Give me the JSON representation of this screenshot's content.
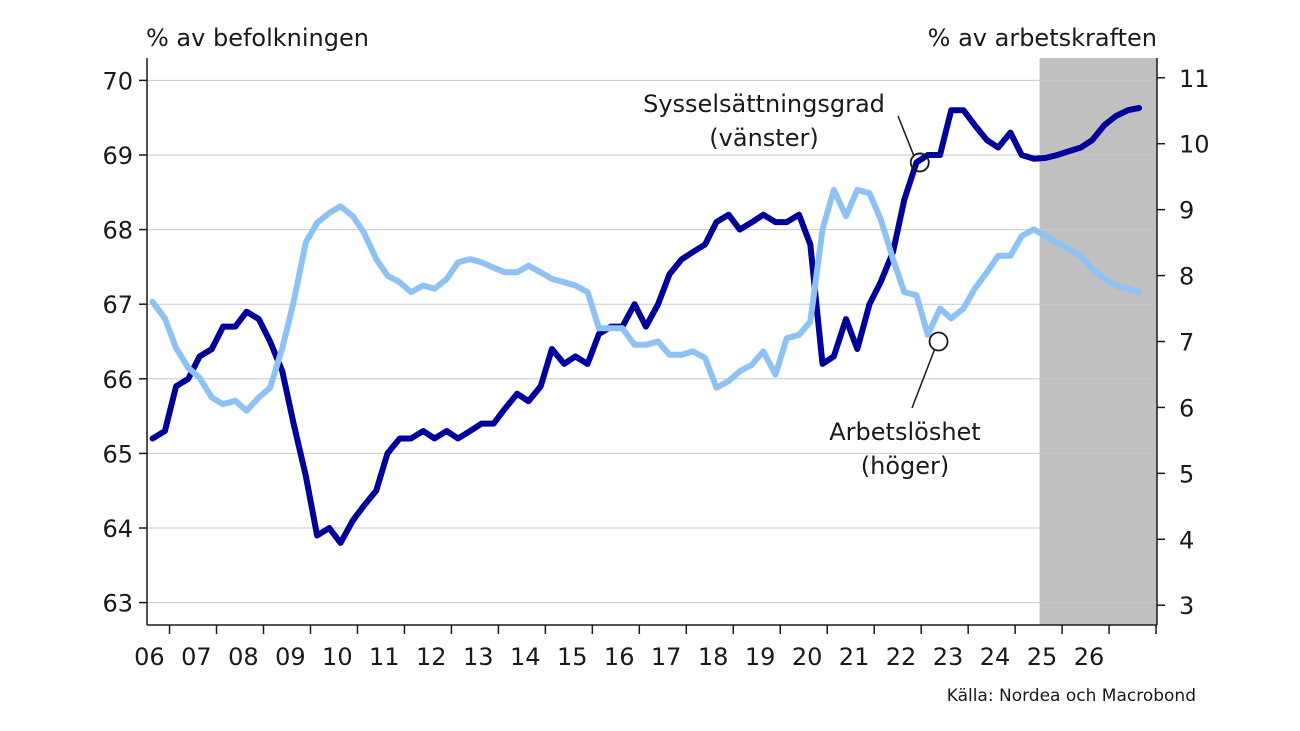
{
  "chart_data": {
    "type": "line",
    "left_axis_unit": "% av befolkningen",
    "right_axis_unit": "% av arbetskraften",
    "source": "Källa: Nordea och Macrobond",
    "x_tick_labels": [
      "06",
      "07",
      "08",
      "09",
      "10",
      "11",
      "12",
      "13",
      "14",
      "15",
      "16",
      "17",
      "18",
      "19",
      "20",
      "21",
      "22",
      "23",
      "24",
      "25",
      "26"
    ],
    "xlim": [
      2005.5,
      2027.0
    ],
    "ylim_left": [
      62.7,
      70.3
    ],
    "ylim_right": [
      2.7,
      11.3
    ],
    "left_ticks": [
      63,
      64,
      65,
      66,
      67,
      68,
      69,
      70
    ],
    "right_ticks": [
      3,
      4,
      5,
      6,
      7,
      8,
      9,
      10,
      11
    ],
    "forecast_shading": {
      "from": 2024.5,
      "to": 2027.0,
      "color": "#c0c0c0"
    },
    "series": [
      {
        "name": "Sysselsättningsgrad",
        "label_suffix": "(vänster)",
        "axis": "left",
        "color": "#00009a",
        "points": [
          [
            2005.62,
            65.2
          ],
          [
            2005.88,
            65.3
          ],
          [
            2006.12,
            65.9
          ],
          [
            2006.38,
            66.0
          ],
          [
            2006.62,
            66.3
          ],
          [
            2006.88,
            66.4
          ],
          [
            2007.12,
            66.7
          ],
          [
            2007.38,
            66.7
          ],
          [
            2007.62,
            66.9
          ],
          [
            2007.88,
            66.8
          ],
          [
            2008.12,
            66.5
          ],
          [
            2008.38,
            66.1
          ],
          [
            2008.62,
            65.4
          ],
          [
            2008.88,
            64.7
          ],
          [
            2009.12,
            63.9
          ],
          [
            2009.38,
            64.0
          ],
          [
            2009.62,
            63.8
          ],
          [
            2009.88,
            64.1
          ],
          [
            2010.12,
            64.3
          ],
          [
            2010.38,
            64.5
          ],
          [
            2010.62,
            65.0
          ],
          [
            2010.88,
            65.2
          ],
          [
            2011.12,
            65.2
          ],
          [
            2011.38,
            65.3
          ],
          [
            2011.62,
            65.2
          ],
          [
            2011.88,
            65.3
          ],
          [
            2012.12,
            65.2
          ],
          [
            2012.38,
            65.3
          ],
          [
            2012.62,
            65.4
          ],
          [
            2012.88,
            65.4
          ],
          [
            2013.12,
            65.6
          ],
          [
            2013.38,
            65.8
          ],
          [
            2013.62,
            65.7
          ],
          [
            2013.88,
            65.9
          ],
          [
            2014.12,
            66.4
          ],
          [
            2014.38,
            66.2
          ],
          [
            2014.62,
            66.3
          ],
          [
            2014.88,
            66.2
          ],
          [
            2015.12,
            66.6
          ],
          [
            2015.38,
            66.7
          ],
          [
            2015.62,
            66.7
          ],
          [
            2015.88,
            67.0
          ],
          [
            2016.12,
            66.7
          ],
          [
            2016.38,
            67.0
          ],
          [
            2016.62,
            67.4
          ],
          [
            2016.88,
            67.6
          ],
          [
            2017.12,
            67.7
          ],
          [
            2017.38,
            67.8
          ],
          [
            2017.62,
            68.1
          ],
          [
            2017.88,
            68.2
          ],
          [
            2018.12,
            68.0
          ],
          [
            2018.38,
            68.1
          ],
          [
            2018.62,
            68.2
          ],
          [
            2018.88,
            68.1
          ],
          [
            2019.12,
            68.1
          ],
          [
            2019.38,
            68.2
          ],
          [
            2019.62,
            67.8
          ],
          [
            2019.88,
            66.2
          ],
          [
            2020.12,
            66.3
          ],
          [
            2020.38,
            66.8
          ],
          [
            2020.62,
            66.4
          ],
          [
            2020.88,
            67.0
          ],
          [
            2021.12,
            67.3
          ],
          [
            2021.38,
            67.7
          ],
          [
            2021.62,
            68.4
          ],
          [
            2021.88,
            68.9
          ],
          [
            2022.12,
            69.0
          ],
          [
            2022.38,
            69.0
          ],
          [
            2022.62,
            69.6
          ],
          [
            2022.88,
            69.6
          ],
          [
            2023.12,
            69.4
          ],
          [
            2023.38,
            69.2
          ],
          [
            2023.62,
            69.1
          ],
          [
            2023.88,
            69.3
          ],
          [
            2024.12,
            69.0
          ],
          [
            2024.38,
            68.95
          ],
          [
            2024.62,
            68.96
          ],
          [
            2024.88,
            69.0
          ],
          [
            2025.12,
            69.05
          ],
          [
            2025.38,
            69.1
          ],
          [
            2025.62,
            69.2
          ],
          [
            2025.88,
            69.4
          ],
          [
            2026.12,
            69.52
          ],
          [
            2026.38,
            69.6
          ],
          [
            2026.62,
            69.63
          ]
        ]
      },
      {
        "name": "Arbetslöshet",
        "label_suffix": "(höger)",
        "axis": "right",
        "color": "#8ec2f5",
        "points": [
          [
            2005.62,
            7.6
          ],
          [
            2005.88,
            7.35
          ],
          [
            2006.12,
            6.9
          ],
          [
            2006.38,
            6.6
          ],
          [
            2006.62,
            6.45
          ],
          [
            2006.88,
            6.15
          ],
          [
            2007.12,
            6.05
          ],
          [
            2007.38,
            6.1
          ],
          [
            2007.62,
            5.95
          ],
          [
            2007.88,
            6.15
          ],
          [
            2008.12,
            6.3
          ],
          [
            2008.38,
            6.9
          ],
          [
            2008.62,
            7.6
          ],
          [
            2008.88,
            8.5
          ],
          [
            2009.12,
            8.8
          ],
          [
            2009.38,
            8.95
          ],
          [
            2009.62,
            9.05
          ],
          [
            2009.88,
            8.9
          ],
          [
            2010.12,
            8.65
          ],
          [
            2010.38,
            8.25
          ],
          [
            2010.62,
            8.0
          ],
          [
            2010.88,
            7.9
          ],
          [
            2011.12,
            7.75
          ],
          [
            2011.38,
            7.85
          ],
          [
            2011.62,
            7.8
          ],
          [
            2011.88,
            7.95
          ],
          [
            2012.12,
            8.2
          ],
          [
            2012.38,
            8.25
          ],
          [
            2012.62,
            8.2
          ],
          [
            2012.88,
            8.12
          ],
          [
            2013.12,
            8.05
          ],
          [
            2013.38,
            8.05
          ],
          [
            2013.62,
            8.15
          ],
          [
            2013.88,
            8.05
          ],
          [
            2014.12,
            7.95
          ],
          [
            2014.38,
            7.9
          ],
          [
            2014.62,
            7.85
          ],
          [
            2014.88,
            7.75
          ],
          [
            2015.12,
            7.2
          ],
          [
            2015.38,
            7.2
          ],
          [
            2015.62,
            7.2
          ],
          [
            2015.88,
            6.95
          ],
          [
            2016.12,
            6.95
          ],
          [
            2016.38,
            7.0
          ],
          [
            2016.62,
            6.8
          ],
          [
            2016.88,
            6.8
          ],
          [
            2017.12,
            6.85
          ],
          [
            2017.38,
            6.75
          ],
          [
            2017.62,
            6.3
          ],
          [
            2017.88,
            6.4
          ],
          [
            2018.12,
            6.55
          ],
          [
            2018.38,
            6.65
          ],
          [
            2018.62,
            6.85
          ],
          [
            2018.88,
            6.5
          ],
          [
            2019.12,
            7.05
          ],
          [
            2019.38,
            7.1
          ],
          [
            2019.62,
            7.3
          ],
          [
            2019.88,
            8.7
          ],
          [
            2020.12,
            9.3
          ],
          [
            2020.38,
            8.9
          ],
          [
            2020.62,
            9.3
          ],
          [
            2020.88,
            9.25
          ],
          [
            2021.12,
            8.85
          ],
          [
            2021.38,
            8.25
          ],
          [
            2021.62,
            7.75
          ],
          [
            2021.88,
            7.7
          ],
          [
            2022.12,
            7.1
          ],
          [
            2022.38,
            7.5
          ],
          [
            2022.62,
            7.35
          ],
          [
            2022.88,
            7.5
          ],
          [
            2023.12,
            7.8
          ],
          [
            2023.38,
            8.05
          ],
          [
            2023.62,
            8.3
          ],
          [
            2023.88,
            8.3
          ],
          [
            2024.12,
            8.6
          ],
          [
            2024.38,
            8.7
          ],
          [
            2024.62,
            8.6
          ],
          [
            2024.88,
            8.5
          ],
          [
            2025.12,
            8.4
          ],
          [
            2025.38,
            8.3
          ],
          [
            2025.62,
            8.1
          ],
          [
            2025.88,
            7.95
          ],
          [
            2026.12,
            7.85
          ],
          [
            2026.38,
            7.8
          ],
          [
            2026.62,
            7.75
          ]
        ]
      }
    ],
    "annotations": [
      {
        "series": 0,
        "text": [
          "Sysselsättningsgrad",
          "(vänster)"
        ],
        "point": [
          2021.95,
          68.9
        ]
      },
      {
        "series": 1,
        "text": [
          "Arbetslöshet",
          "(höger)"
        ],
        "point": [
          2022.35,
          7.0
        ]
      }
    ]
  }
}
